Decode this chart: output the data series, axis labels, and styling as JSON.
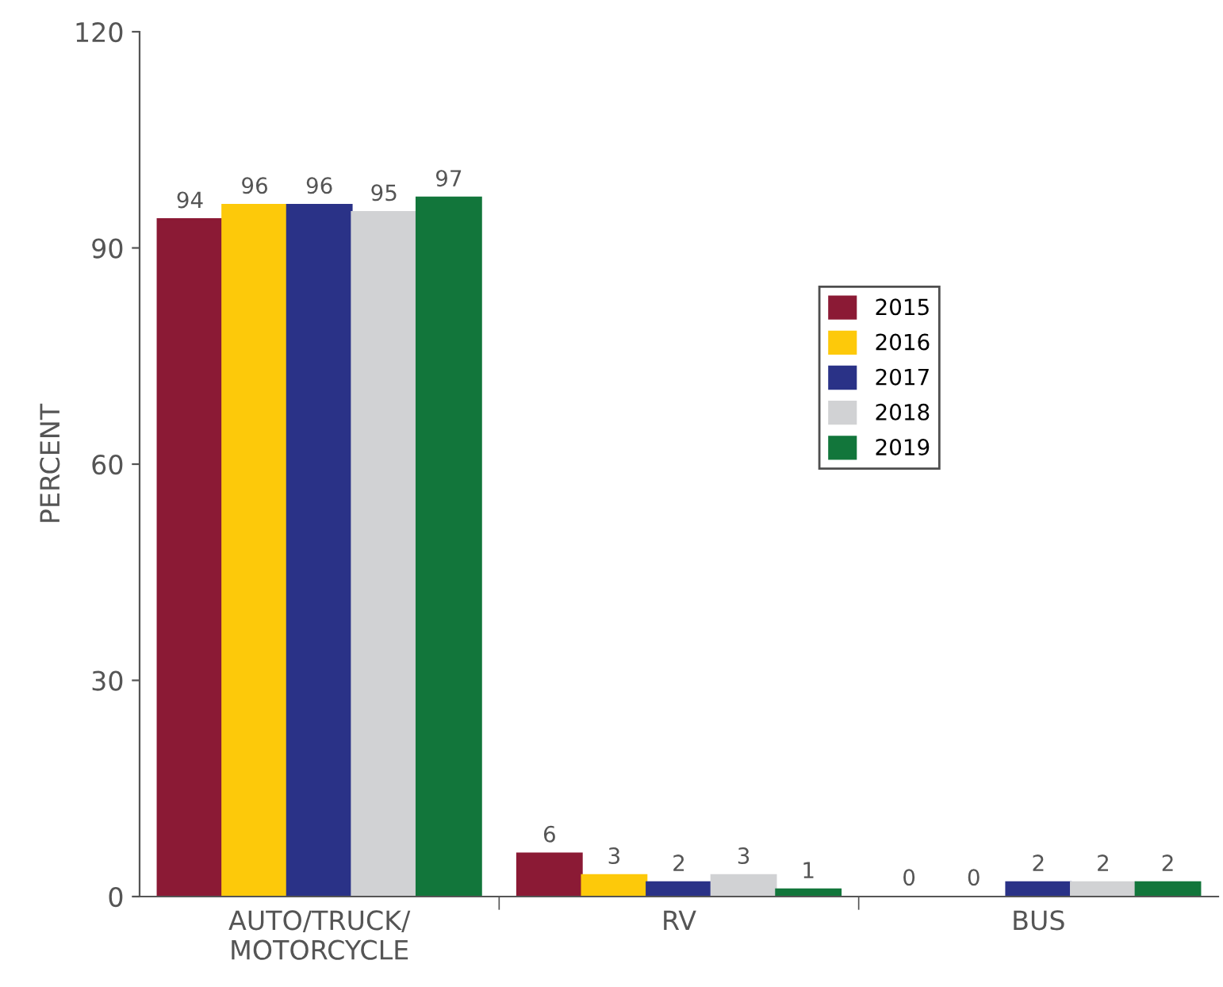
{
  "chart_data": {
    "type": "bar",
    "ylabel": "PERCENT",
    "categories": [
      "AUTO/TRUCK/\nMOTORCYCLE",
      "RV",
      "BUS"
    ],
    "series": [
      {
        "name": "2015",
        "color": "#8b1a35",
        "values": [
          94,
          6,
          0
        ]
      },
      {
        "name": "2016",
        "color": "#fdc90a",
        "values": [
          96,
          3,
          0
        ]
      },
      {
        "name": "2017",
        "color": "#2a3287",
        "values": [
          96,
          2,
          2
        ]
      },
      {
        "name": "2018",
        "color": "#d1d2d4",
        "values": [
          95,
          3,
          2
        ]
      },
      {
        "name": "2019",
        "color": "#12763b",
        "values": [
          97,
          1,
          2
        ]
      }
    ],
    "ylim": [
      0,
      120
    ],
    "yticks": [
      0,
      30,
      60,
      90,
      120
    ],
    "grid": false,
    "legend": "right",
    "data_labels": true
  }
}
